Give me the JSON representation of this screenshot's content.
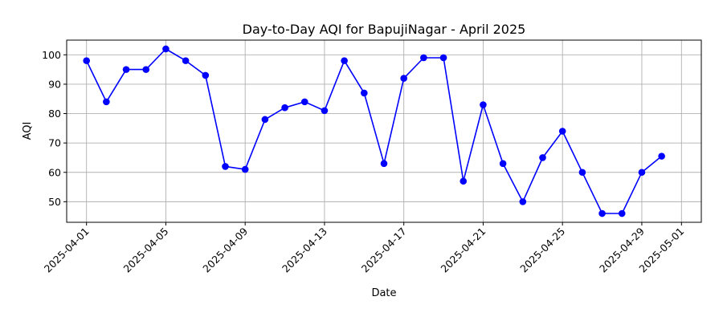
{
  "chart_data": {
    "type": "line",
    "title": "Day-to-Day AQI for BapujiNagar - April 2025",
    "xlabel": "Date",
    "ylabel": "AQI",
    "grid": true,
    "series_color": "#0000ff",
    "x_ticks": [
      "2025-04-01",
      "2025-04-05",
      "2025-04-09",
      "2025-04-13",
      "2025-04-17",
      "2025-04-21",
      "2025-04-25",
      "2025-04-29",
      "2025-05-01"
    ],
    "y_ticks": [
      50,
      60,
      70,
      80,
      90,
      100
    ],
    "xlim": [
      "2025-03-31",
      "2025-05-02"
    ],
    "ylim": [
      43,
      105
    ],
    "x": [
      "2025-04-01",
      "2025-04-02",
      "2025-04-03",
      "2025-04-04",
      "2025-04-05",
      "2025-04-06",
      "2025-04-07",
      "2025-04-08",
      "2025-04-09",
      "2025-04-10",
      "2025-04-11",
      "2025-04-12",
      "2025-04-13",
      "2025-04-14",
      "2025-04-15",
      "2025-04-16",
      "2025-04-17",
      "2025-04-18",
      "2025-04-19",
      "2025-04-20",
      "2025-04-21",
      "2025-04-22",
      "2025-04-23",
      "2025-04-24",
      "2025-04-25",
      "2025-04-26",
      "2025-04-27",
      "2025-04-28",
      "2025-04-29",
      "2025-04-30"
    ],
    "values": [
      98,
      84,
      95,
      95,
      102,
      98,
      93,
      62,
      61,
      78,
      82,
      84,
      81,
      98,
      87,
      63,
      92,
      99,
      99,
      57,
      83,
      63,
      50,
      65,
      74,
      60,
      46,
      46,
      60,
      65.5
    ]
  }
}
